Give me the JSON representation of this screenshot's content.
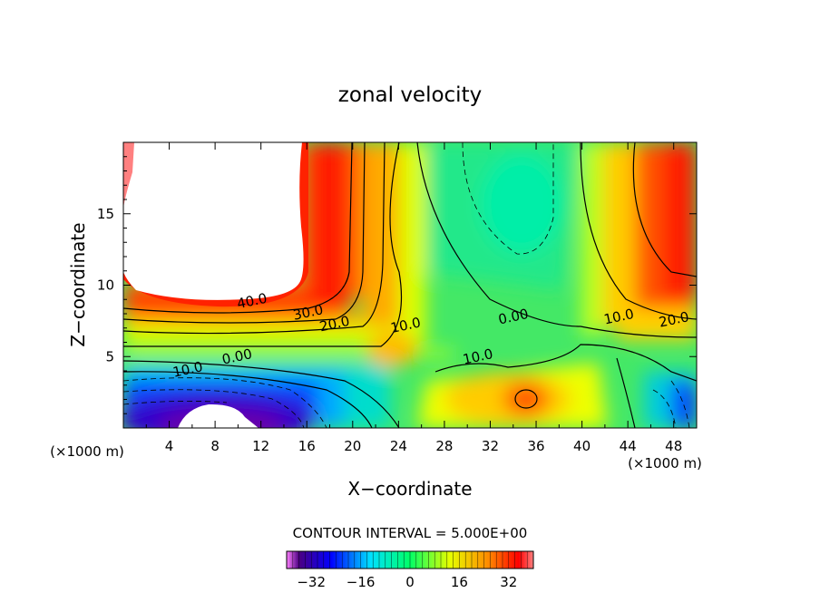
{
  "chart_data": {
    "type": "heatmap",
    "subtype": "filled-contour",
    "title": "zonal velocity",
    "xlabel": "X−coordinate",
    "ylabel": "Z−coordinate",
    "x_unit_left": "(×1000 m)",
    "x_unit_right": "(×1000 m)",
    "xlim": [
      0,
      50
    ],
    "ylim": [
      0,
      20
    ],
    "x_ticks": [
      4,
      8,
      12,
      16,
      20,
      24,
      28,
      32,
      36,
      40,
      44,
      48
    ],
    "y_ticks": [
      5,
      10,
      15
    ],
    "contour_interval_text": "CONTOUR INTERVAL = 5.000E+00",
    "contour_labels": [
      {
        "text": "40.0",
        "x": 11.3,
        "z": 8.9
      },
      {
        "text": "30.0",
        "x": 16.2,
        "z": 8.1
      },
      {
        "text": "20.0",
        "x": 18.5,
        "z": 7.3
      },
      {
        "text": "10.0",
        "x": 24.7,
        "z": 7.2
      },
      {
        "text": "0.00",
        "x": 34.1,
        "z": 7.8
      },
      {
        "text": "10.0",
        "x": 43.3,
        "z": 7.8
      },
      {
        "text": "20.0",
        "x": 48.1,
        "z": 7.6
      },
      {
        "text": "10.0",
        "x": 5.7,
        "z": 4.1
      },
      {
        "text": "0.00",
        "x": 10.0,
        "z": 5.0
      },
      {
        "text": "10.0",
        "x": 31.0,
        "z": 5.0
      }
    ],
    "colorbar": {
      "range": [
        -40,
        40
      ],
      "ticks": [
        -32,
        -16,
        0,
        16,
        32
      ],
      "tick_labels": [
        "−32",
        "−16",
        "0",
        "16",
        "32"
      ]
    },
    "colors": {
      "min": "#4b0082",
      "neg_mid": "#0000ff",
      "neg_low": "#00e0ff",
      "zero": "#00ff66",
      "pos_low": "#e6ff00",
      "pos_mid": "#ff8800",
      "pos_high": "#ff0000",
      "max": "#ff8080"
    }
  }
}
